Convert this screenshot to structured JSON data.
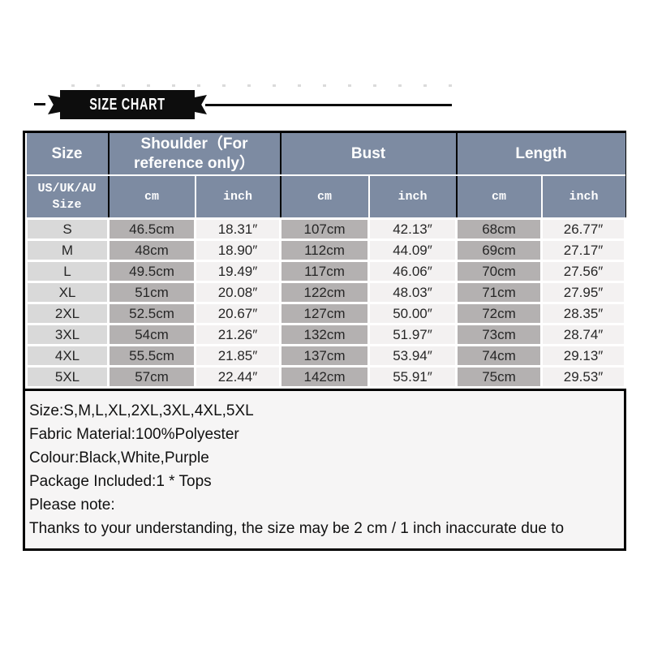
{
  "banner": {
    "title": "SIZE CHART"
  },
  "table": {
    "groups": {
      "size": "Size",
      "shoulder": "Shoulder（For reference only）",
      "bust": "Bust",
      "length": "Length"
    },
    "sub_header": {
      "size_label": "US/UK/AU\nSize",
      "cm": "cm",
      "inch": "inch"
    }
  },
  "notes": {
    "lines": [
      "Size:S,M,L,XL,2XL,3XL,4XL,5XL",
      "Fabric Material:100%Polyester",
      "Colour:Black,White,Purple",
      "Package Included:1 * Tops",
      "Please note:",
      "Thanks to your understanding, the size may be 2 cm / 1 inch inaccurate due to"
    ]
  },
  "colors": {
    "header_blue": "#7d8ba2",
    "cm_column_gray": "#b4b1b1",
    "size_column_gray": "#d9d9d9",
    "inch_column_white": "#f3f1f1",
    "border_black": "#000000",
    "notes_background": "#f6f5f5"
  },
  "chart_data": {
    "type": "table",
    "title": "SIZE CHART",
    "columns": [
      "US/UK/AU Size",
      "Shoulder cm",
      "Shoulder inch",
      "Bust cm",
      "Bust inch",
      "Length cm",
      "Length inch"
    ],
    "rows": [
      [
        "S",
        "46.5cm",
        "18.31″",
        "107cm",
        "42.13″",
        "68cm",
        "26.77″"
      ],
      [
        "M",
        "48cm",
        "18.90″",
        "112cm",
        "44.09″",
        "69cm",
        "27.17″"
      ],
      [
        "L",
        "49.5cm",
        "19.49″",
        "117cm",
        "46.06″",
        "70cm",
        "27.56″"
      ],
      [
        "XL",
        "51cm",
        "20.08″",
        "122cm",
        "48.03″",
        "71cm",
        "27.95″"
      ],
      [
        "2XL",
        "52.5cm",
        "20.67″",
        "127cm",
        "50.00″",
        "72cm",
        "28.35″"
      ],
      [
        "3XL",
        "54cm",
        "21.26″",
        "132cm",
        "51.97″",
        "73cm",
        "28.74″"
      ],
      [
        "4XL",
        "55.5cm",
        "21.85″",
        "137cm",
        "53.94″",
        "74cm",
        "29.13″"
      ],
      [
        "5XL",
        "57cm",
        "22.44″",
        "142cm",
        "55.91″",
        "75cm",
        "29.53″"
      ]
    ]
  }
}
